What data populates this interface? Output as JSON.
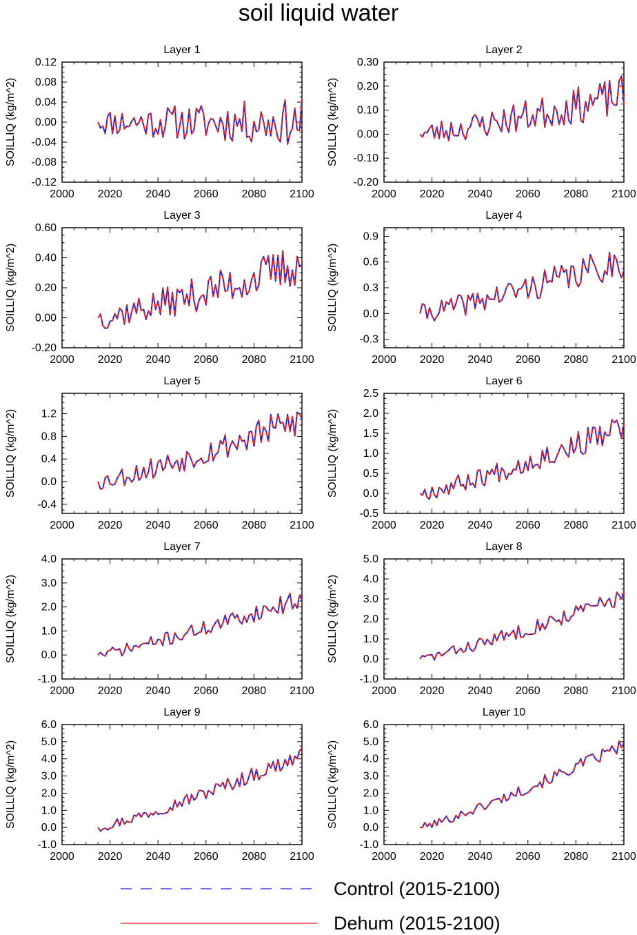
{
  "title": "soil liquid water",
  "legend": [
    {
      "label": "Control (2015-2100)",
      "color": "#2222dd",
      "dash": "dashed"
    },
    {
      "label": "Dehum (2015-2100)",
      "color": "#ee2222",
      "dash": "solid"
    }
  ],
  "chart_data": [
    {
      "type": "line",
      "title": "Layer 1",
      "ylabel": "SOILLIQ  (kg/m^2)",
      "xlim": [
        2000,
        2100
      ],
      "ylim": [
        -0.12,
        0.12
      ],
      "xticks": [
        "2000",
        "2020",
        "2040",
        "2060",
        "2080",
        "2100"
      ],
      "yticks": [
        "-0.12",
        "-0.08",
        "-0.04",
        "0.00",
        "0.04",
        "0.08",
        "0.12"
      ],
      "x_start": 2015,
      "x_end": 2100,
      "trend": 0.0,
      "start": 0.0,
      "amp": 0.048,
      "seed": 11,
      "series": [
        {
          "name": "Control (2015-2100)"
        },
        {
          "name": "Dehum (2015-2100)"
        }
      ]
    },
    {
      "type": "line",
      "title": "Layer 2",
      "ylabel": "SOILLIQ  (kg/m^2)",
      "xlim": [
        2000,
        2100
      ],
      "ylim": [
        -0.2,
        0.3
      ],
      "xticks": [
        "2000",
        "2020",
        "2040",
        "2060",
        "2080",
        "2100"
      ],
      "yticks": [
        "-0.20",
        "-0.10",
        "0.00",
        "0.10",
        "0.20",
        "0.30"
      ],
      "x_start": 2015,
      "x_end": 2100,
      "trend": 0.16,
      "start": 0.0,
      "amp": 0.085,
      "seed": 23,
      "series": [
        {
          "name": "Control (2015-2100)"
        },
        {
          "name": "Dehum (2015-2100)"
        }
      ]
    },
    {
      "type": "line",
      "title": "Layer 3",
      "ylabel": "SOILLIQ  (kg/m^2)",
      "xlim": [
        2000,
        2100
      ],
      "ylim": [
        -0.2,
        0.6
      ],
      "xticks": [
        "2000",
        "2020",
        "2040",
        "2060",
        "2080",
        "2100"
      ],
      "yticks": [
        "-0.20",
        "0.00",
        "0.20",
        "0.40",
        "0.60"
      ],
      "x_start": 2015,
      "x_end": 2100,
      "trend": 0.36,
      "start": 0.0,
      "amp": 0.15,
      "seed": 37,
      "series": [
        {
          "name": "Control (2015-2100)"
        },
        {
          "name": "Dehum (2015-2100)"
        }
      ]
    },
    {
      "type": "line",
      "title": "Layer 4",
      "ylabel": "SOILLIQ  (kg/m^2)",
      "xlim": [
        2000,
        2100
      ],
      "ylim": [
        -0.4,
        1.0
      ],
      "xticks": [
        "2000",
        "2020",
        "2040",
        "2060",
        "2080",
        "2100"
      ],
      "yticks": [
        "-0.3",
        "0.0",
        "0.3",
        "0.6",
        "0.9"
      ],
      "x_start": 2015,
      "x_end": 2100,
      "trend": 0.62,
      "start": 0.0,
      "amp": 0.2,
      "seed": 41,
      "series": [
        {
          "name": "Control (2015-2100)"
        },
        {
          "name": "Dehum (2015-2100)"
        }
      ]
    },
    {
      "type": "line",
      "title": "Layer 5",
      "ylabel": "SOILLIQ  (kg/m^2)",
      "xlim": [
        2000,
        2100
      ],
      "ylim": [
        -0.56,
        1.56
      ],
      "xticks": [
        "2000",
        "2020",
        "2040",
        "2060",
        "2080",
        "2100"
      ],
      "yticks": [
        "-0.4",
        "0.0",
        "0.4",
        "0.8",
        "1.2"
      ],
      "x_start": 2015,
      "x_end": 2100,
      "trend": 1.1,
      "start": 0.0,
      "amp": 0.3,
      "seed": 53,
      "series": [
        {
          "name": "Control (2015-2100)"
        },
        {
          "name": "Dehum (2015-2100)"
        }
      ]
    },
    {
      "type": "line",
      "title": "Layer 6",
      "ylabel": "SOILLIQ  (kg/m^2)",
      "xlim": [
        2000,
        2100
      ],
      "ylim": [
        -0.5,
        2.5
      ],
      "xticks": [
        "2000",
        "2020",
        "2040",
        "2060",
        "2080",
        "2100"
      ],
      "yticks": [
        "-0.5",
        "0.0",
        "0.5",
        "1.0",
        "1.5",
        "2.0",
        "2.5"
      ],
      "x_start": 2015,
      "x_end": 2100,
      "trend": 1.65,
      "start": 0.0,
      "amp": 0.36,
      "seed": 67,
      "series": [
        {
          "name": "Control (2015-2100)"
        },
        {
          "name": "Dehum (2015-2100)"
        }
      ]
    },
    {
      "type": "line",
      "title": "Layer 7",
      "ylabel": "SOILLIQ  (kg/m^2)",
      "xlim": [
        2000,
        2100
      ],
      "ylim": [
        -1.0,
        4.0
      ],
      "xticks": [
        "2000",
        "2020",
        "2040",
        "2060",
        "2080",
        "2100"
      ],
      "yticks": [
        "-1.0",
        "0.0",
        "1.0",
        "2.0",
        "3.0",
        "4.0"
      ],
      "x_start": 2015,
      "x_end": 2100,
      "trend": 2.35,
      "start": 0.0,
      "amp": 0.4,
      "seed": 71,
      "series": [
        {
          "name": "Control (2015-2100)"
        },
        {
          "name": "Dehum (2015-2100)"
        }
      ]
    },
    {
      "type": "line",
      "title": "Layer 8",
      "ylabel": "SOILLIQ  (kg/m^2)",
      "xlim": [
        2000,
        2100
      ],
      "ylim": [
        -1.0,
        5.0
      ],
      "xticks": [
        "2000",
        "2020",
        "2040",
        "2060",
        "2080",
        "2100"
      ],
      "yticks": [
        "-1.0",
        "0.0",
        "1.0",
        "2.0",
        "3.0",
        "4.0",
        "5.0"
      ],
      "x_start": 2015,
      "x_end": 2100,
      "trend": 3.15,
      "start": 0.0,
      "amp": 0.45,
      "seed": 83,
      "series": [
        {
          "name": "Control (2015-2100)"
        },
        {
          "name": "Dehum (2015-2100)"
        }
      ]
    },
    {
      "type": "line",
      "title": "Layer 9",
      "ylabel": "SOILLIQ  (kg/m^2)",
      "xlim": [
        2000,
        2100
      ],
      "ylim": [
        -1.0,
        6.0
      ],
      "xticks": [
        "2000",
        "2020",
        "2040",
        "2060",
        "2080",
        "2100"
      ],
      "yticks": [
        "-1.0",
        "0.0",
        "1.0",
        "2.0",
        "3.0",
        "4.0",
        "5.0",
        "6.0"
      ],
      "x_start": 2015,
      "x_end": 2100,
      "trend": 4.2,
      "start": 0.0,
      "amp": 0.5,
      "seed": 97,
      "series": [
        {
          "name": "Control (2015-2100)"
        },
        {
          "name": "Dehum (2015-2100)"
        }
      ]
    },
    {
      "type": "line",
      "title": "Layer 10",
      "ylabel": "SOILLIQ  (kg/m^2)",
      "xlim": [
        2000,
        2100
      ],
      "ylim": [
        -1.0,
        6.0
      ],
      "xticks": [
        "2000",
        "2020",
        "2040",
        "2060",
        "2080",
        "2100"
      ],
      "yticks": [
        "-1.0",
        "0.0",
        "1.0",
        "2.0",
        "3.0",
        "4.0",
        "5.0",
        "6.0"
      ],
      "x_start": 2015,
      "x_end": 2100,
      "trend": 4.8,
      "start": 0.0,
      "amp": 0.42,
      "seed": 101,
      "series": [
        {
          "name": "Control (2015-2100)"
        },
        {
          "name": "Dehum (2015-2100)"
        }
      ]
    }
  ]
}
